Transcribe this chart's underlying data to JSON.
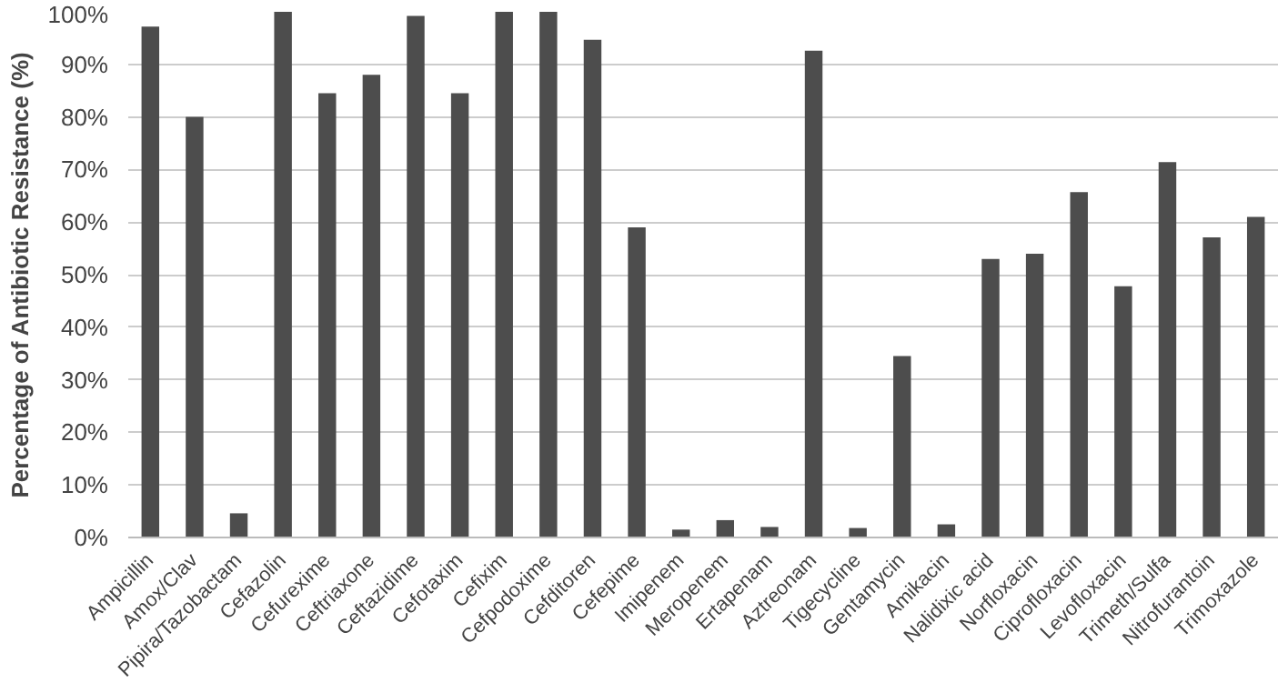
{
  "chart_data": {
    "type": "bar",
    "ylabel": "Percentage of Antibiotic Resistance (%)",
    "categories": [
      "Ampicillin",
      "Amox/Clav",
      "Pipira/Tazobactam",
      "Cefazolin",
      "Cefurexime",
      "Ceftriaxone",
      "Ceftazidime",
      "Cefotaxim",
      "Cefixim",
      "Cefpodoxime",
      "Cefditoren",
      "Cefepime",
      "Imipenem",
      "Meropenem",
      "Ertapenam",
      "Aztreonam",
      "Tigecycline",
      "Gentamycin",
      "Amikacin",
      "Nalidixic acid",
      "Norfloxacin",
      "Ciprofloxacin",
      "Levofloxacin",
      "Trimeth/Sulfa",
      "Nitrofurantoin",
      "Trimoxazole"
    ],
    "values": [
      97.2,
      80,
      4.6,
      100,
      84.5,
      88,
      99.2,
      84.5,
      100,
      100,
      94.7,
      59,
      1.5,
      3.3,
      2,
      92.6,
      1.8,
      34.5,
      2.5,
      53,
      54,
      65.7,
      47.8,
      71.4,
      57.1,
      61
    ],
    "color": "#4d4d4d",
    "ylim": [
      0,
      100
    ],
    "yticks": [
      {
        "value": 0,
        "label": "0%"
      },
      {
        "value": 10,
        "label": "10%"
      },
      {
        "value": 20,
        "label": "20%"
      },
      {
        "value": 30,
        "label": "30%"
      },
      {
        "value": 40,
        "label": "40%"
      },
      {
        "value": 50,
        "label": "50%"
      },
      {
        "value": 60,
        "label": "60%"
      },
      {
        "value": 70,
        "label": "70%"
      },
      {
        "value": 80,
        "label": "80%"
      },
      {
        "value": 90,
        "label": "90%"
      },
      {
        "value": 100,
        "label": "100%"
      }
    ],
    "grid": "y"
  }
}
